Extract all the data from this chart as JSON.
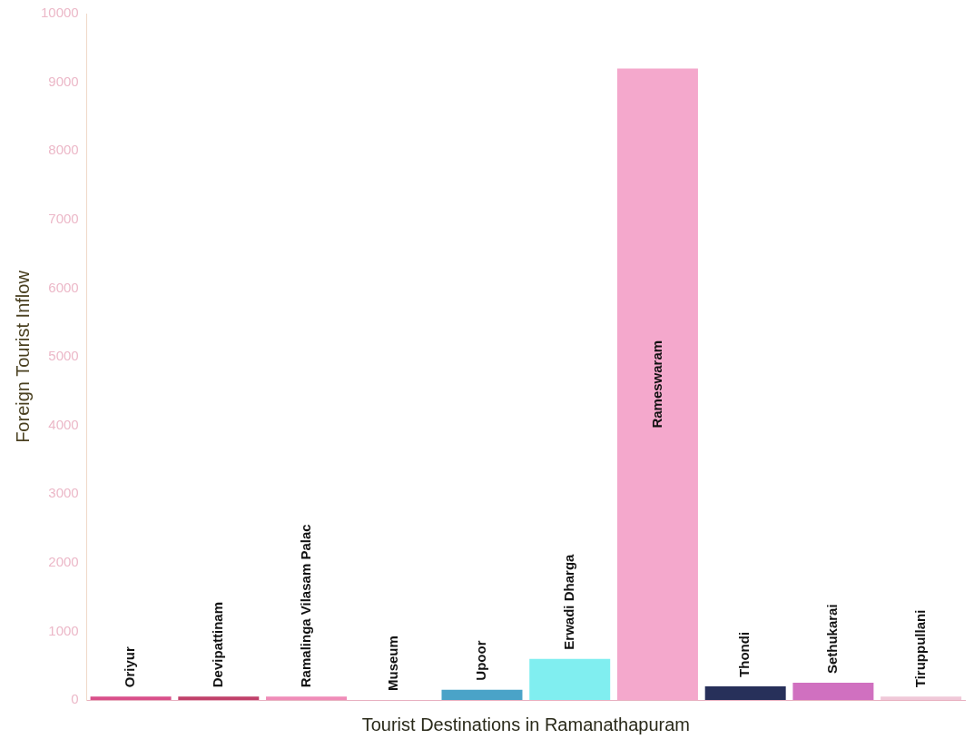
{
  "chart_data": {
    "type": "bar",
    "xlabel": "Tourist Destinations in Ramanathapuram",
    "ylabel": "Foreign Tourist Inflow",
    "categories": [
      "Oriyur",
      "Devipattinam",
      "Ramalinga Vilasam Palac",
      "Museum",
      "Upoor",
      "Erwadi Dharga",
      "Rameswaram",
      "Thondi",
      "Sethukarai",
      "Tiruppullani"
    ],
    "values": [
      50,
      50,
      50,
      0,
      150,
      600,
      9200,
      200,
      250,
      50
    ],
    "colors": [
      "#d94f8a",
      "#c0406a",
      "#f08cb8",
      "#e8d0d8",
      "#4aa3c8",
      "#80eef0",
      "#f4a8cc",
      "#27305a",
      "#d070c0",
      "#f0c8d8"
    ],
    "ylim": [
      0,
      10000
    ],
    "yticks": [
      0,
      1000,
      2000,
      3000,
      4000,
      5000,
      6000,
      7000,
      8000,
      9000,
      10000
    ],
    "tick_labels": "y",
    "grid": false,
    "legend": false
  }
}
